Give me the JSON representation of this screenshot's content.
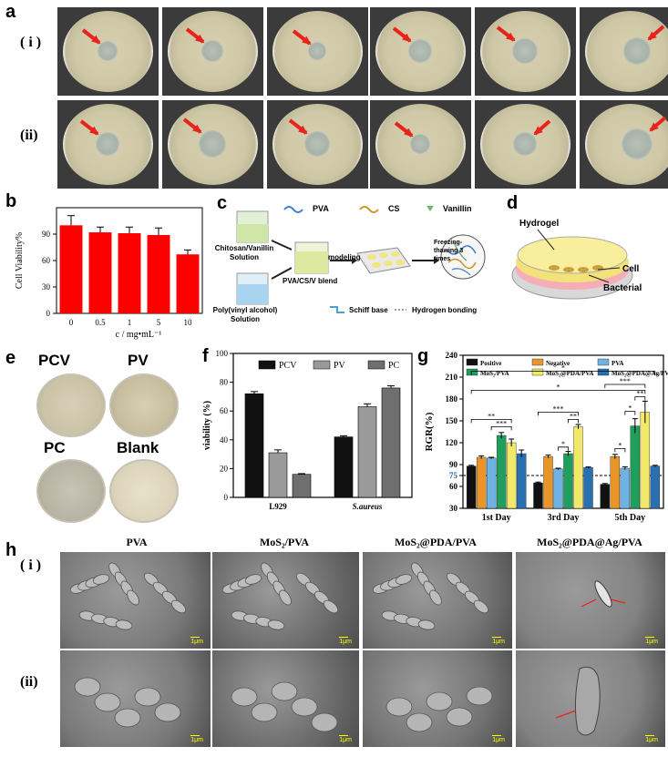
{
  "panels": {
    "a": "a",
    "b": "b",
    "c": "c",
    "d": "d",
    "e": "e",
    "f": "f",
    "g": "g",
    "h": "h"
  },
  "row_labels": {
    "i": "( i )",
    "ii": "(ii)"
  },
  "panel_c": {
    "legend_pva": "PVA",
    "legend_cs": "CS",
    "legend_vanillin": "Vanillin",
    "chitosan_solution": "Chitosan/Vanillin Solution",
    "pva_solution": "Poly(vinyl alcohol) Solution",
    "blend": "PVA/CS/V blend",
    "modeling": "modeling",
    "freezing": "Freezing- thawing 3 times",
    "schiff_base": "Schiff base",
    "hydrogen_bonding": "Hydrogen bonding"
  },
  "panel_d": {
    "hydrogel": "Hydrogel",
    "cell": "Cell",
    "bacterial": "Bacterial"
  },
  "panel_e": {
    "labels": [
      "PCV",
      "PV",
      "PC",
      "Blank"
    ]
  },
  "panel_h": {
    "columns": [
      "PVA",
      "MoS₂/PVA",
      "MoS₂@PDA/PVA",
      "MoS₂@PDA@Ag/PVA"
    ],
    "scale_bar": "1μm"
  },
  "chart_data": [
    {
      "id": "b",
      "type": "bar",
      "categories": [
        "0",
        "0.5",
        "1",
        "5",
        "10"
      ],
      "values": [
        100,
        92,
        91,
        89,
        67
      ],
      "errors": [
        11,
        6,
        7,
        8,
        5
      ],
      "xlabel": "c / mg•mL⁻¹",
      "ylabel": "Cell Viability%",
      "ylim": [
        0,
        120
      ],
      "yticks": [
        0,
        30,
        60,
        90
      ],
      "color": "#ff0000"
    },
    {
      "id": "f",
      "type": "bar",
      "categories": [
        "L929",
        "S.aureus"
      ],
      "series": [
        {
          "name": "PCV",
          "values": [
            72,
            42
          ],
          "errors": [
            1.5,
            0.8
          ],
          "color": "#111111"
        },
        {
          "name": "PV",
          "values": [
            31,
            63
          ],
          "errors": [
            2,
            2
          ],
          "color": "#9a9a9a"
        },
        {
          "name": "PC",
          "values": [
            16,
            76
          ],
          "errors": [
            0.5,
            1.5
          ],
          "color": "#6f6f6f"
        }
      ],
      "ylabel": "viability (%)",
      "ylim": [
        0,
        100
      ],
      "yticks": [
        0,
        20,
        40,
        60,
        80,
        100
      ],
      "legend": "top"
    },
    {
      "id": "g",
      "type": "bar",
      "categories": [
        "1st Day",
        "3rd Day",
        "5th Day"
      ],
      "series": [
        {
          "name": "Positive",
          "values": [
            88,
            65,
            63
          ],
          "errors": [
            1,
            1,
            1
          ],
          "color": "#111111"
        },
        {
          "name": "Negative",
          "values": [
            100,
            101,
            101
          ],
          "errors": [
            2,
            2,
            3
          ],
          "color": "#e8962a"
        },
        {
          "name": "PVA",
          "values": [
            99,
            84,
            85
          ],
          "errors": [
            1,
            1,
            2
          ],
          "color": "#6fb2e4"
        },
        {
          "name": "MoS₂/PVA",
          "values": [
            130,
            105,
            143
          ],
          "errors": [
            4,
            3,
            10
          ],
          "color": "#1f9e5e"
        },
        {
          "name": "MoS₂@PDA/PVA",
          "values": [
            120,
            142,
            162
          ],
          "errors": [
            5,
            3,
            15
          ],
          "color": "#f2e86a"
        },
        {
          "name": "MoS₂@PDA@Ag/PVA",
          "values": [
            105,
            86,
            88
          ],
          "errors": [
            5,
            1,
            1
          ],
          "color": "#2a6fb0"
        }
      ],
      "ylabel": "RGR(%)",
      "ylim": [
        30,
        240
      ],
      "yticks": [
        30,
        60,
        75,
        90,
        120,
        150,
        180,
        210,
        240
      ],
      "reference_line": 75,
      "significance": [
        "**",
        "***",
        "*",
        "***",
        "**",
        "*",
        "***",
        "*",
        "**",
        "*",
        "*"
      ]
    }
  ]
}
